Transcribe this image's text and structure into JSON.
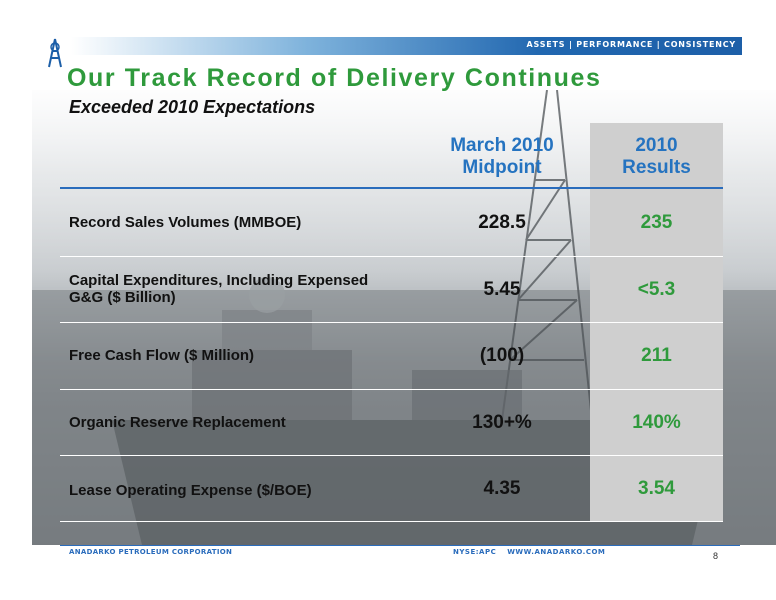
{
  "header": {
    "tagline": "ASSETS | PERFORMANCE | CONSISTENCY",
    "title": "Our Track Record of Delivery Continues",
    "subtitle": "Exceeded 2010 Expectations"
  },
  "table": {
    "columns": [
      {
        "line1": "March 2010",
        "line2": "Midpoint"
      },
      {
        "line1": "2010",
        "line2": "Results"
      }
    ],
    "rows": [
      {
        "label": "Record Sales Volumes (MMBOE)",
        "midpoint": "228.5",
        "results": "235"
      },
      {
        "label": "Capital Expenditures, Including Expensed G&G ($ Billion)",
        "midpoint": "5.45",
        "results": "<5.3"
      },
      {
        "label": "Free Cash Flow ($ Million)",
        "midpoint": "(100)",
        "results": "211"
      },
      {
        "label": "Organic Reserve Replacement",
        "midpoint": "130+%",
        "results": "140%"
      },
      {
        "label": "Lease Operating Expense ($/BOE)",
        "midpoint": "4.35",
        "results": "3.54"
      }
    ]
  },
  "footer": {
    "company": "ANADARKO PETROLEUM CORPORATION",
    "ticker": "NYSE:APC",
    "website": "WWW.ANADARKO.COM",
    "page_number": "8"
  },
  "colors": {
    "title_green": "#2f9a3c",
    "header_blue": "#2573c0",
    "result_green": "#2f9a3c",
    "bar_blue": "#1d5fa8"
  },
  "icons": [
    "anadarko-derrick-logo"
  ]
}
